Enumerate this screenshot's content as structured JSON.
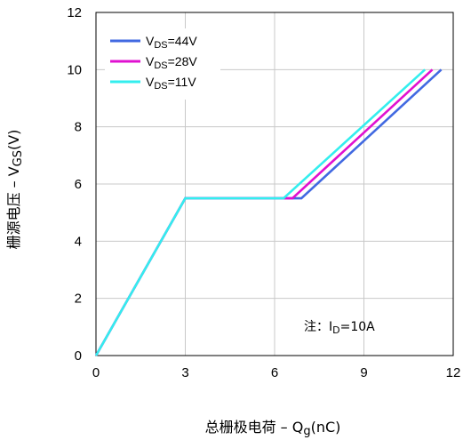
{
  "chart_data": {
    "type": "line",
    "xlabel": {
      "prefix": "总栅极电荷 – Q",
      "sub": "g",
      "suffix": "(nC)"
    },
    "ylabel": {
      "prefix": "栅源电压 – V",
      "sub": "GS",
      "suffix": "(V)"
    },
    "xlim": [
      0,
      12
    ],
    "ylim": [
      0,
      12
    ],
    "xticks": [
      0,
      3,
      6,
      9,
      12
    ],
    "yticks": [
      0,
      2,
      4,
      6,
      8,
      10,
      12
    ],
    "grid": true,
    "legend_position": "top-left",
    "note": {
      "prefix": "注：I",
      "sub": "D",
      "suffix": "=10A"
    },
    "series": [
      {
        "name": {
          "base": "V",
          "sub": "DS",
          "suffix": "=44V"
        },
        "color": "#4169e1",
        "x": [
          0,
          3,
          6.9,
          11.6
        ],
        "y": [
          0,
          5.5,
          5.5,
          10
        ]
      },
      {
        "name": {
          "base": "V",
          "sub": "DS",
          "suffix": "=28V"
        },
        "color": "#e010d0",
        "x": [
          0,
          3,
          6.6,
          11.3
        ],
        "y": [
          0,
          5.5,
          5.5,
          10
        ]
      },
      {
        "name": {
          "base": "V",
          "sub": "DS",
          "suffix": "=11V"
        },
        "color": "#33eeee",
        "x": [
          0,
          3,
          6.3,
          11.05
        ],
        "y": [
          0,
          5.5,
          5.5,
          10
        ]
      }
    ]
  }
}
